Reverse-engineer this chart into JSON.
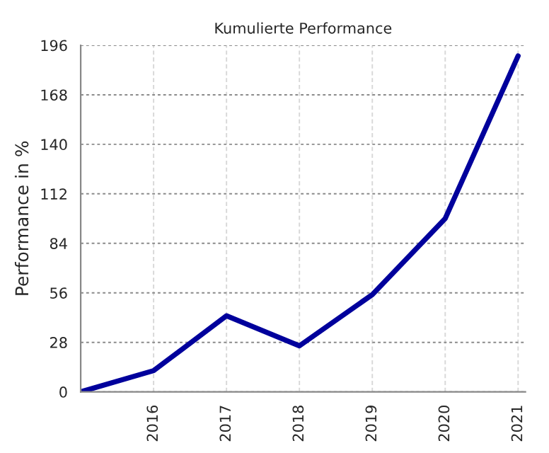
{
  "chart_data": {
    "type": "line",
    "title": "Kumulierte Performance",
    "ylabel": "Performance in %",
    "x": [
      2015,
      2016,
      2017,
      2018,
      2019,
      2020,
      2021
    ],
    "series": [
      {
        "color": "#00009c",
        "values": [
          0,
          12,
          43,
          26,
          55,
          98,
          190
        ]
      }
    ],
    "xlim": [
      2015,
      2021.1
    ],
    "xticks": [
      2016,
      2017,
      2018,
      2019,
      2020,
      2021
    ],
    "ylim": [
      0,
      196
    ],
    "yticks": [
      0,
      28,
      56,
      84,
      112,
      140,
      168,
      196
    ],
    "grid": true,
    "marker": "none",
    "line_style": "solid"
  }
}
